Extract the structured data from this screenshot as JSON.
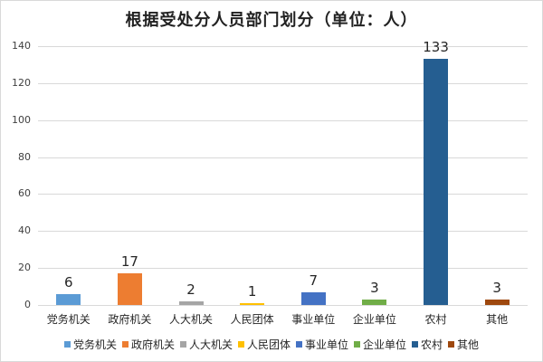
{
  "chart_data": {
    "type": "bar",
    "title": "根据受处分人员部门划分（单位：人）",
    "xlabel": "",
    "ylabel": "",
    "ylim": [
      0,
      140
    ],
    "yticks": [
      0,
      20,
      40,
      60,
      80,
      100,
      120,
      140
    ],
    "grid": true,
    "legend_position": "bottom",
    "categories": [
      "党务机关",
      "政府机关",
      "人大机关",
      "人民团体",
      "事业单位",
      "企业单位",
      "农村",
      "其他"
    ],
    "values": [
      6,
      17,
      2,
      1,
      7,
      3,
      133,
      3
    ],
    "colors": [
      "#5b9bd5",
      "#ed7d31",
      "#a5a5a5",
      "#ffc000",
      "#4472c4",
      "#70ad47",
      "#255e91",
      "#9e480e"
    ],
    "data_labels": [
      "6",
      "17",
      "2",
      "1",
      "7",
      "3",
      "133",
      "3"
    ]
  }
}
